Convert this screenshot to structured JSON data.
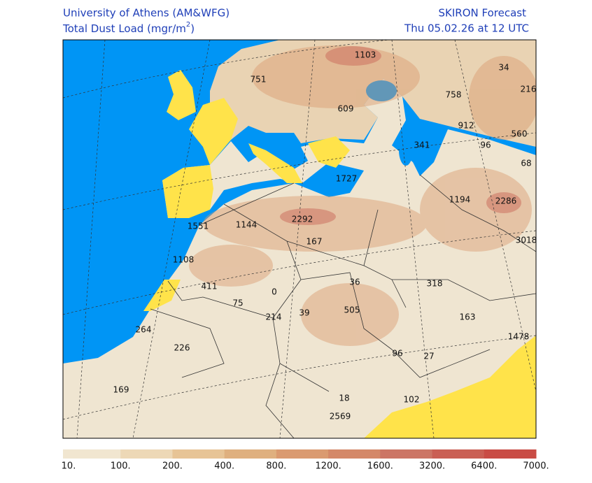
{
  "header": {
    "left_title": "University of Athens (AM&WFG)",
    "quantity": {
      "text": "Total Dust Load (mgr/m",
      "sup": "2",
      "close": ")"
    },
    "right_title": "SKIRON Forecast",
    "valid_time": "Thu 05.02.26 at 12 UTC"
  },
  "map_labels": [
    1103,
    34,
    751,
    216,
    758,
    609,
    912,
    560,
    96,
    341,
    68,
    1727,
    1194,
    2286,
    2292,
    1551,
    1144,
    3018,
    167,
    1108,
    411,
    0,
    36,
    318,
    75,
    39,
    505,
    214,
    163,
    1478,
    264,
    226,
    96,
    27,
    169,
    18,
    102,
    2569
  ],
  "colorbar": {
    "labels": [
      "10.",
      "100.",
      "200.",
      "400.",
      "800.",
      "1200.",
      "1600.",
      "3200.",
      "6400.",
      "7000."
    ],
    "colors": [
      "#f1e6d0",
      "#edd8b6",
      "#e7c496",
      "#dfb07f",
      "#da9a70",
      "#d48868",
      "#cc7565",
      "#ca5f54",
      "#c94c45"
    ]
  }
}
